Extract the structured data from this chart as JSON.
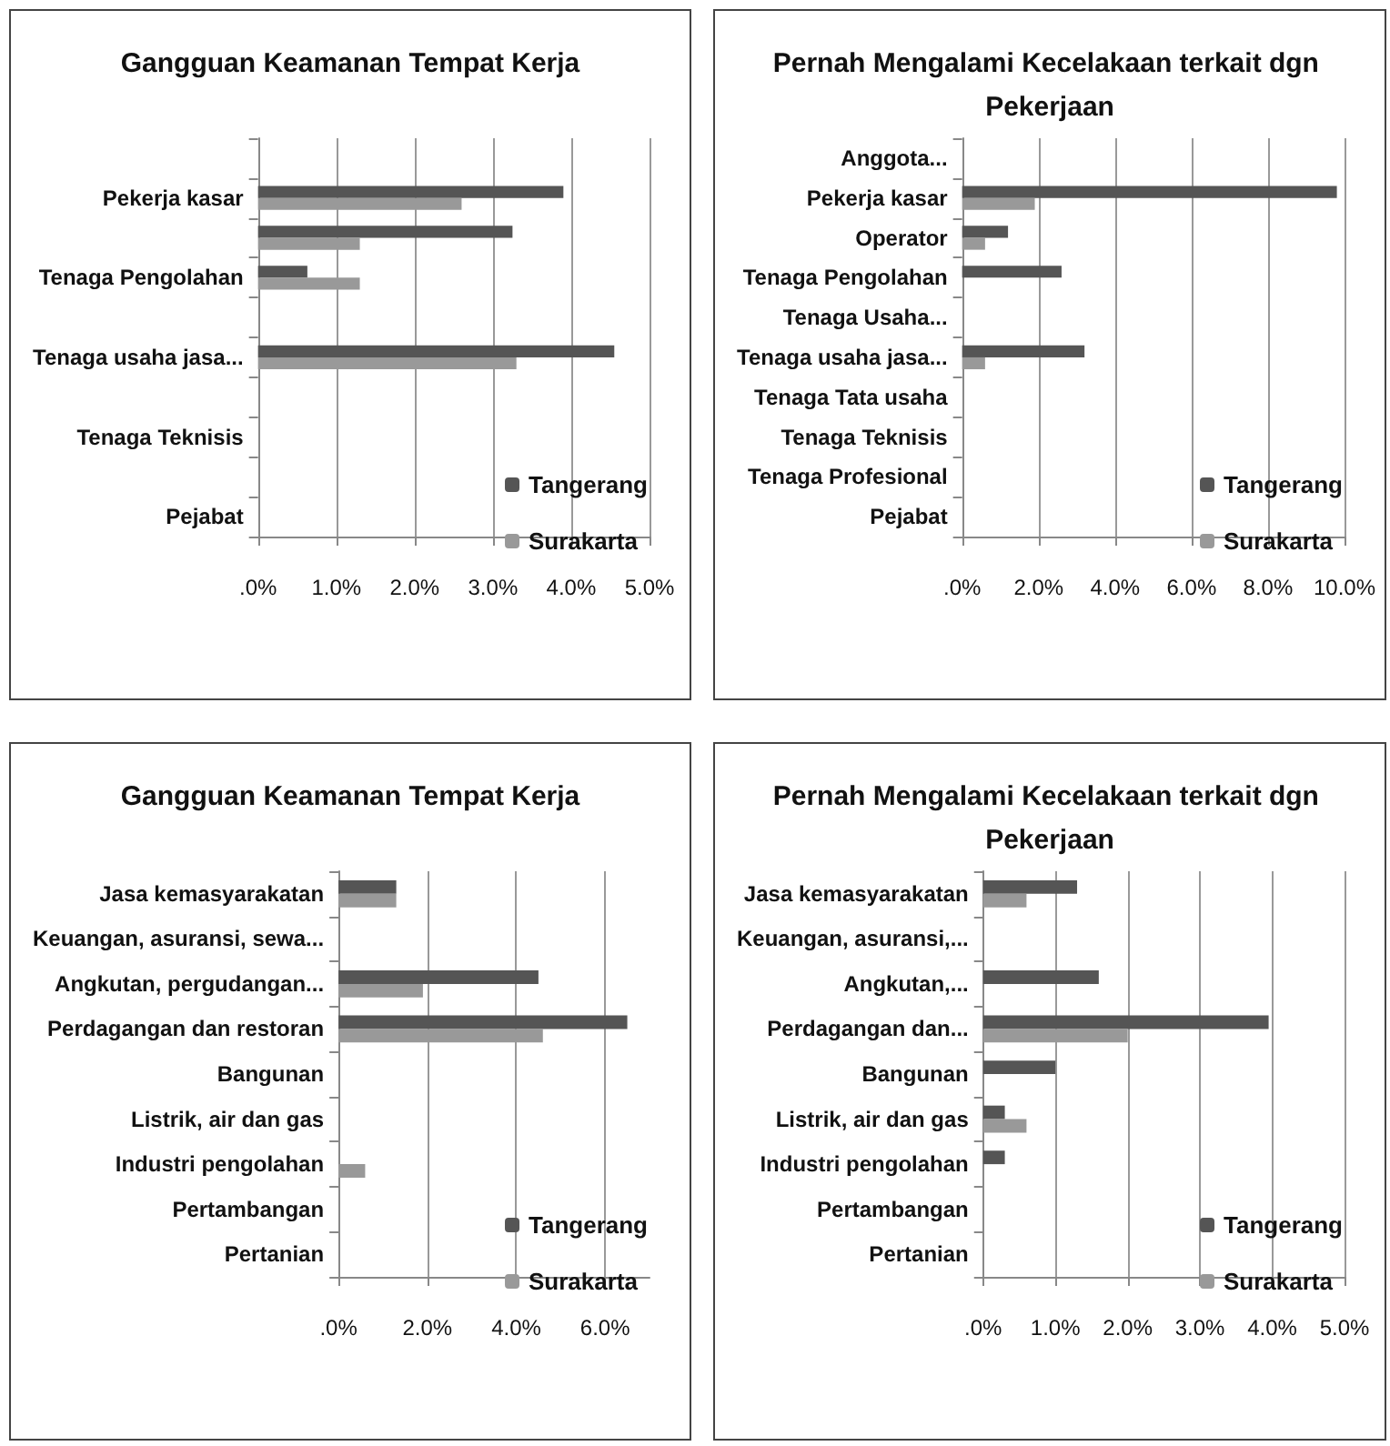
{
  "chart_data": [
    {
      "type": "bar",
      "orientation": "horizontal",
      "title": "Gangguan Keamanan Tempat Kerja",
      "categories": [
        null,
        "Pekerja kasar",
        null,
        "Tenaga Pengolahan",
        null,
        "Tenaga usaha jasa...",
        null,
        "Tenaga Teknisis",
        null,
        "Pejabat"
      ],
      "series": [
        {
          "name": "Tangerang",
          "color": "#555555",
          "values": [
            0,
            3.9,
            3.25,
            0.63,
            0,
            4.55,
            0,
            0,
            0,
            0
          ]
        },
        {
          "name": "Surakarta",
          "color": "#999999",
          "values": [
            0,
            2.6,
            1.3,
            1.3,
            0,
            3.3,
            0,
            0,
            0,
            0
          ]
        }
      ],
      "xlim": [
        0,
        5
      ],
      "xticks": [
        {
          "value": 0,
          "label": ".0%"
        },
        {
          "value": 1,
          "label": "1.0%"
        },
        {
          "value": 2,
          "label": "2.0%"
        },
        {
          "value": 3,
          "label": "3.0%"
        },
        {
          "value": 4,
          "label": "4.0%"
        },
        {
          "value": 5,
          "label": "5.0%"
        }
      ],
      "grid": "x",
      "legend": "bottom right"
    },
    {
      "type": "bar",
      "orientation": "horizontal",
      "title": "Pernah Mengalami Kecelakaan terkait dgn Pekerjaan",
      "categories": [
        "Anggota...",
        "Pekerja kasar",
        "Operator",
        "Tenaga Pengolahan",
        "Tenaga Usaha...",
        "Tenaga usaha jasa...",
        "Tenaga Tata usaha",
        "Tenaga Teknisis",
        "Tenaga Profesional",
        "Pejabat"
      ],
      "series": [
        {
          "name": "Tangerang",
          "color": "#555555",
          "values": [
            0,
            9.8,
            1.2,
            2.6,
            0,
            3.2,
            0,
            0,
            0,
            0
          ]
        },
        {
          "name": "Surakarta",
          "color": "#999999",
          "values": [
            0,
            1.9,
            0.6,
            0,
            0,
            0.6,
            0,
            0,
            0,
            0
          ]
        }
      ],
      "xlim": [
        0,
        10
      ],
      "xticks": [
        {
          "value": 0,
          "label": ".0%"
        },
        {
          "value": 2,
          "label": "2.0%"
        },
        {
          "value": 4,
          "label": "4.0%"
        },
        {
          "value": 6,
          "label": "6.0%"
        },
        {
          "value": 8,
          "label": "8.0%"
        },
        {
          "value": 10,
          "label": "10.0%"
        }
      ],
      "grid": "x",
      "legend": "bottom right"
    },
    {
      "type": "bar",
      "orientation": "horizontal",
      "title": "Gangguan Keamanan Tempat Kerja",
      "categories": [
        "Jasa kemasyarakatan",
        "Keuangan, asuransi, sewa...",
        "Angkutan, pergudangan...",
        "Perdagangan dan restoran",
        "Bangunan",
        "Listrik, air dan gas",
        "Industri pengolahan",
        "Pertambangan",
        "Pertanian"
      ],
      "series": [
        {
          "name": "Tangerang",
          "color": "#555555",
          "values": [
            1.3,
            0,
            4.5,
            6.5,
            0,
            0,
            0,
            0,
            0
          ]
        },
        {
          "name": "Surakarta",
          "color": "#999999",
          "values": [
            1.3,
            0,
            1.9,
            4.6,
            0,
            0,
            0.6,
            0,
            0
          ]
        }
      ],
      "xlim": [
        0,
        7
      ],
      "xticks": [
        {
          "value": 0,
          "label": ".0%"
        },
        {
          "value": 2,
          "label": "2.0%"
        },
        {
          "value": 4,
          "label": "4.0%"
        },
        {
          "value": 6,
          "label": "6.0%"
        }
      ],
      "grid": "x",
      "legend": "bottom right"
    },
    {
      "type": "bar",
      "orientation": "horizontal",
      "title": "Pernah Mengalami Kecelakaan terkait dgn Pekerjaan",
      "categories": [
        "Jasa kemasyarakatan",
        "Keuangan, asuransi,...",
        "Angkutan,...",
        "Perdagangan dan...",
        "Bangunan",
        "Listrik, air dan gas",
        "Industri pengolahan",
        "Pertambangan",
        "Pertanian"
      ],
      "series": [
        {
          "name": "Tangerang",
          "color": "#555555",
          "values": [
            1.3,
            0,
            1.6,
            3.95,
            1.0,
            0.3,
            0.3,
            0,
            0
          ]
        },
        {
          "name": "Surakarta",
          "color": "#999999",
          "values": [
            0.6,
            0,
            0,
            2.0,
            0,
            0.6,
            0,
            0,
            0
          ]
        }
      ],
      "xlim": [
        0,
        5
      ],
      "xticks": [
        {
          "value": 0,
          "label": ".0%"
        },
        {
          "value": 1,
          "label": "1.0%"
        },
        {
          "value": 2,
          "label": "2.0%"
        },
        {
          "value": 3,
          "label": "3.0%"
        },
        {
          "value": 4,
          "label": "4.0%"
        },
        {
          "value": 5,
          "label": "5.0%"
        }
      ],
      "grid": "x",
      "legend": "bottom right"
    }
  ]
}
